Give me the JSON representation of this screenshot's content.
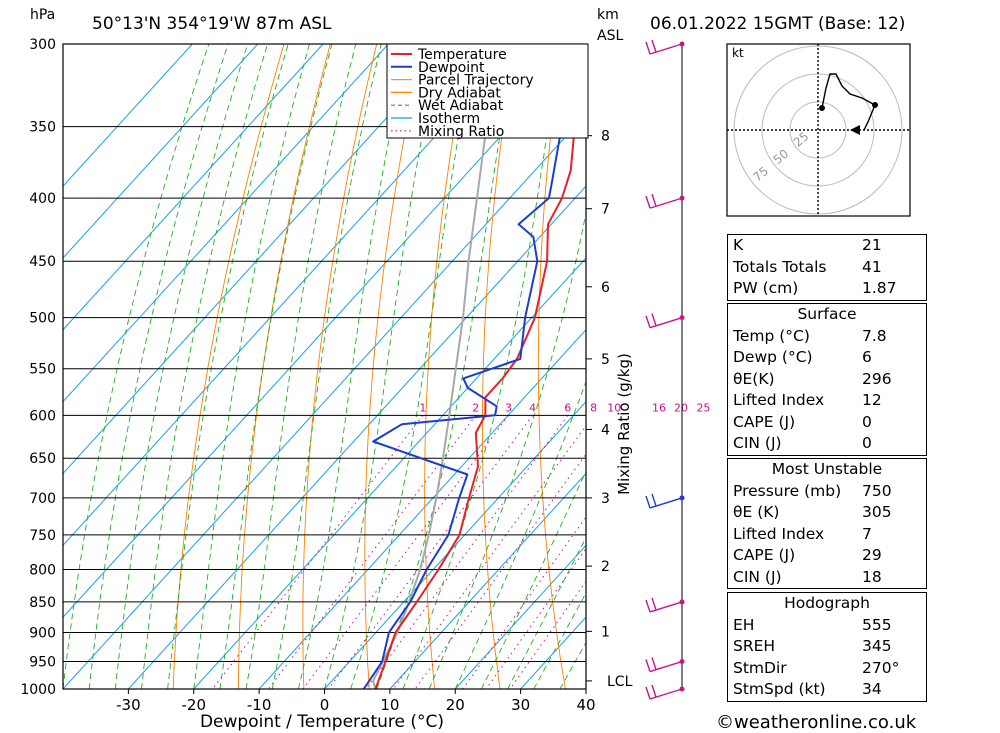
{
  "header": {
    "pressure_unit": "hPa",
    "location": "50°13'N  354°19'W  87m  ASL",
    "height_unit": "km",
    "height_unit_sub": "ASL",
    "datetime": "06.01.2022  15GMT  (Base: 12)"
  },
  "chart_data": {
    "type": "line",
    "subtype": "skew-t log-p diagram",
    "xlabel": "Dewpoint / Temperature (°C)",
    "ylabel": "hPa",
    "secondary_ylabel": "Mixing Ratio (g/kg)",
    "xlim": [
      -40,
      40
    ],
    "ylim": [
      1000,
      300
    ],
    "x_ticks": [
      -30,
      -20,
      -10,
      0,
      10,
      20,
      30,
      40
    ],
    "pressure_ticks": [
      300,
      350,
      400,
      450,
      500,
      550,
      600,
      650,
      700,
      750,
      800,
      850,
      900,
      950,
      1000
    ],
    "height_ticks": [
      {
        "label": "8",
        "p": 356
      },
      {
        "label": "7",
        "p": 408
      },
      {
        "label": "6",
        "p": 472
      },
      {
        "label": "5",
        "p": 540
      },
      {
        "label": "4",
        "p": 616
      },
      {
        "label": "3",
        "p": 700
      },
      {
        "label": "2",
        "p": 795
      },
      {
        "label": "1",
        "p": 898
      },
      {
        "label": "LCL",
        "p": 985
      }
    ],
    "mixing_ratio_labels": [
      "1",
      "2",
      "3",
      "4",
      "6",
      "8",
      "10",
      "16",
      "20",
      "25"
    ],
    "legend": [
      {
        "name": "Temperature",
        "color": "#e8202a",
        "style": "solid"
      },
      {
        "name": "Dewpoint",
        "color": "#1c3cd0",
        "style": "solid"
      },
      {
        "name": "Parcel Trajectory",
        "color": "#a8a8a8",
        "style": "solid"
      },
      {
        "name": "Dry Adiabat",
        "color": "#ff8000",
        "style": "solid"
      },
      {
        "name": "Wet Adiabat",
        "color": "#20b020",
        "style": "dashed"
      },
      {
        "name": "Isotherm",
        "color": "#18a0e8",
        "style": "solid"
      },
      {
        "name": "Mixing Ratio",
        "color": "#c8148c",
        "style": "dotted"
      }
    ],
    "series": [
      {
        "name": "Temperature",
        "points": [
          [
            1000,
            7.8
          ],
          [
            950,
            5.5
          ],
          [
            900,
            3.0
          ],
          [
            850,
            2.0
          ],
          [
            800,
            0.8
          ],
          [
            750,
            -0.8
          ],
          [
            700,
            -4.5
          ],
          [
            660,
            -7.5
          ],
          [
            620,
            -12.5
          ],
          [
            600,
            -13.5
          ],
          [
            580,
            -16.0
          ],
          [
            560,
            -16.0
          ],
          [
            540,
            -16.5
          ],
          [
            500,
            -19.5
          ],
          [
            450,
            -25.5
          ],
          [
            420,
            -30.5
          ],
          [
            400,
            -32.0
          ],
          [
            380,
            -34.5
          ],
          [
            350,
            -40.0
          ],
          [
            320,
            -46.0
          ],
          [
            300,
            -50.0
          ]
        ]
      },
      {
        "name": "Dewpoint",
        "points": [
          [
            1000,
            6.0
          ],
          [
            950,
            5.0
          ],
          [
            900,
            2.0
          ],
          [
            850,
            1.0
          ],
          [
            800,
            -1.0
          ],
          [
            750,
            -2.5
          ],
          [
            700,
            -6.0
          ],
          [
            670,
            -8.0
          ],
          [
            630,
            -27.0
          ],
          [
            610,
            -25.0
          ],
          [
            600,
            -12.0
          ],
          [
            590,
            -13.0
          ],
          [
            570,
            -20.0
          ],
          [
            560,
            -22.0
          ],
          [
            540,
            -16.0
          ],
          [
            500,
            -21.0
          ],
          [
            450,
            -27.0
          ],
          [
            430,
            -31.0
          ],
          [
            420,
            -35.0
          ],
          [
            400,
            -34.0
          ],
          [
            390,
            -35.5
          ],
          [
            350,
            -42.0
          ],
          [
            320,
            -49.0
          ],
          [
            300,
            -55.0
          ]
        ]
      },
      {
        "name": "Parcel Trajectory",
        "points": [
          [
            1000,
            7.8
          ],
          [
            985,
            6.3
          ],
          [
            900,
            3.3
          ],
          [
            850,
            0.8
          ],
          [
            800,
            -2.0
          ],
          [
            750,
            -5.5
          ],
          [
            700,
            -9.5
          ],
          [
            650,
            -14.0
          ],
          [
            600,
            -19.0
          ],
          [
            550,
            -24.5
          ],
          [
            500,
            -30.5
          ],
          [
            450,
            -37.5
          ],
          [
            400,
            -45.0
          ],
          [
            350,
            -53.5
          ],
          [
            300,
            -62.0
          ]
        ]
      }
    ],
    "wind_barbs": [
      {
        "p": 300
      },
      {
        "p": 400
      },
      {
        "p": 500
      },
      {
        "p": 700
      },
      {
        "p": 850
      },
      {
        "p": 950
      },
      {
        "p": 1000
      }
    ]
  },
  "hodograph": {
    "unit_label": "kt",
    "ring_labels": [
      "25",
      "50",
      "75"
    ]
  },
  "indices": {
    "top": [
      {
        "label": "K",
        "value": "21"
      },
      {
        "label": "Totals Totals",
        "value": "41"
      },
      {
        "label": "PW (cm)",
        "value": "1.87"
      }
    ],
    "surface": {
      "title": "Surface",
      "rows": [
        {
          "label": "Temp (°C)",
          "value": "7.8"
        },
        {
          "label": "Dewp (°C)",
          "value": "6"
        },
        {
          "label": "θE(K)",
          "value": "296"
        },
        {
          "label": "Lifted Index",
          "value": "12"
        },
        {
          "label": "CAPE (J)",
          "value": "0"
        },
        {
          "label": "CIN (J)",
          "value": "0"
        }
      ]
    },
    "most_unstable": {
      "title": "Most Unstable",
      "rows": [
        {
          "label": "Pressure (mb)",
          "value": "750"
        },
        {
          "label": "θE (K)",
          "value": "305"
        },
        {
          "label": "Lifted Index",
          "value": "7"
        },
        {
          "label": "CAPE (J)",
          "value": "29"
        },
        {
          "label": "CIN (J)",
          "value": "18"
        }
      ]
    },
    "hodograph_stats": {
      "title": "Hodograph",
      "rows": [
        {
          "label": "EH",
          "value": "555"
        },
        {
          "label": "SREH",
          "value": "345"
        },
        {
          "label": "StmDir",
          "value": "270°"
        },
        {
          "label": "StmSpd (kt)",
          "value": "34"
        }
      ]
    }
  },
  "footer": {
    "copyright": "©weatheronline.co.uk"
  }
}
